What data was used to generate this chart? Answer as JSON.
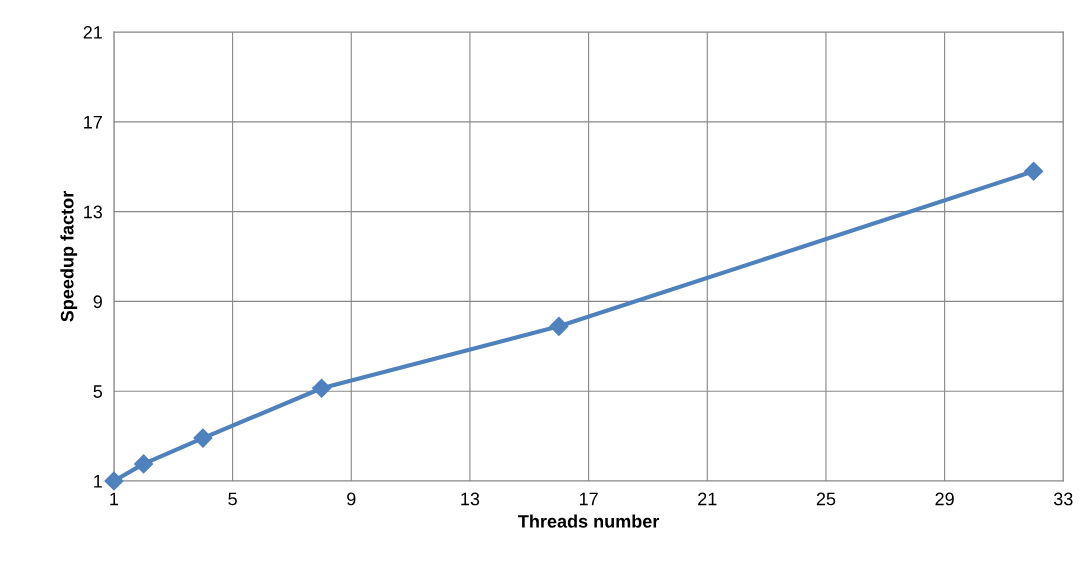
{
  "chart_data": {
    "type": "line",
    "xlabel": "Threads number",
    "ylabel": "Speedup factor",
    "x": [
      1,
      2,
      4,
      8,
      16,
      32
    ],
    "series": [
      {
        "color": "#4f81bd",
        "values": [
          1,
          1.76,
          2.91,
          5.13,
          7.89,
          14.8
        ]
      }
    ],
    "xlim": [
      1,
      33
    ],
    "xticks": [
      1,
      5,
      9,
      13,
      17,
      21,
      25,
      29,
      33
    ],
    "ylim": [
      1,
      21
    ],
    "yticks": [
      1,
      5,
      9,
      13,
      17,
      21
    ],
    "grid": true,
    "marker": "diamond",
    "line_style": "solid"
  }
}
